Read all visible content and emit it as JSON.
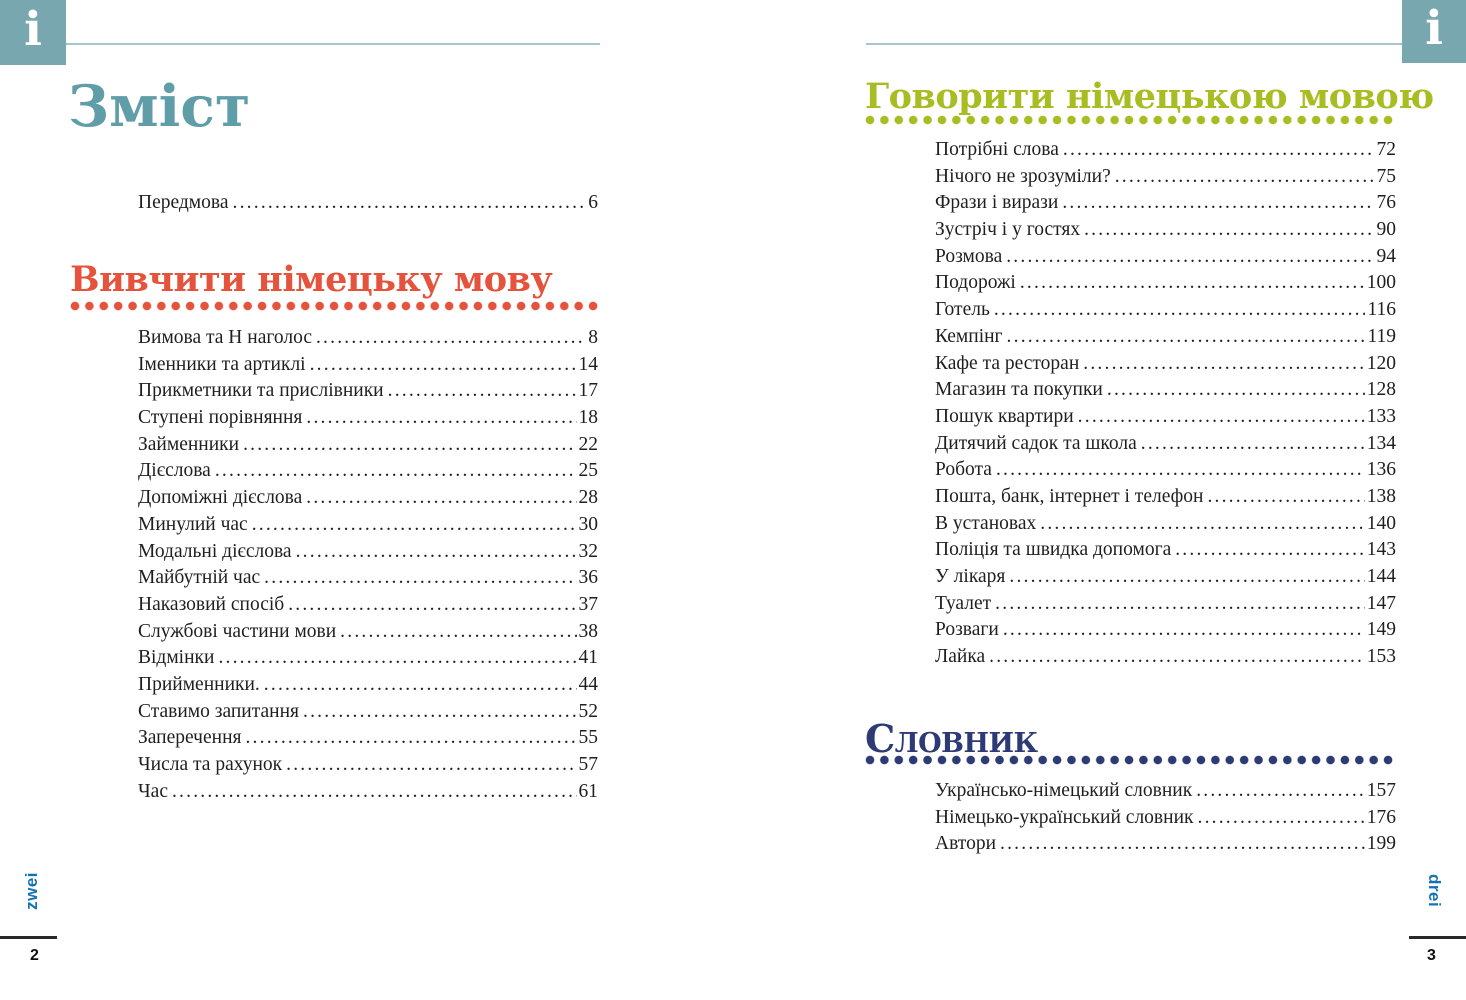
{
  "header": {
    "left_tab_glyph": "i",
    "right_tab_glyph": "i"
  },
  "left_page": {
    "title": "Зміст",
    "front_items": [
      {
        "label": "Передмова",
        "page": "6"
      }
    ],
    "section": {
      "heading": "Вивчити німецьку мову",
      "items": [
        {
          "label": "Вимова та Н наголос",
          "page": "8"
        },
        {
          "label": "Іменники та артиклі",
          "page": "14"
        },
        {
          "label": "Прикметники та прислівники",
          "page": "17"
        },
        {
          "label": "Ступені порівняння",
          "page": "18"
        },
        {
          "label": "Займенники",
          "page": "22"
        },
        {
          "label": "Дієслова",
          "page": "25"
        },
        {
          "label": "Допоміжні дієслова",
          "page": "28"
        },
        {
          "label": "Минулий час",
          "page": "30"
        },
        {
          "label": "Модальні дієслова",
          "page": "32"
        },
        {
          "label": "Майбутній час",
          "page": "36"
        },
        {
          "label": "Наказовий спосіб",
          "page": "37"
        },
        {
          "label": "Службові частини мови",
          "page": "38"
        },
        {
          "label": "Відмінки",
          "page": "41"
        },
        {
          "label": "Прийменники.",
          "page": "44"
        },
        {
          "label": "Ставимо запитання",
          "page": "52"
        },
        {
          "label": "Заперечення",
          "page": "55"
        },
        {
          "label": "Числа та рахунок",
          "page": "57"
        },
        {
          "label": "Час",
          "page": "61"
        }
      ]
    },
    "footer": {
      "word": "zwei",
      "page_number": "2"
    }
  },
  "right_page": {
    "section_speak": {
      "heading": "Говорити німецькою мовою",
      "items": [
        {
          "label": "Потрібні слова",
          "page": "72"
        },
        {
          "label": "Нічого не зрозуміли?",
          "page": "75"
        },
        {
          "label": "Фрази і вирази",
          "page": "76"
        },
        {
          "label": "Зустріч і у гостях",
          "page": "90"
        },
        {
          "label": "Розмова",
          "page": "94"
        },
        {
          "label": "Подорожі",
          "page": "100"
        },
        {
          "label": "Готель",
          "page": "116"
        },
        {
          "label": "Кемпінг",
          "page": "119"
        },
        {
          "label": "Кафе та ресторан",
          "page": "120"
        },
        {
          "label": "Магазин та покупки",
          "page": "128"
        },
        {
          "label": "Пошук квартири",
          "page": "133"
        },
        {
          "label": "Дитячий садок та школа",
          "page": "134"
        },
        {
          "label": "Робота",
          "page": "136"
        },
        {
          "label": "Пошта, банк, інтернет і телефон",
          "page": "138"
        },
        {
          "label": "В установах",
          "page": "140"
        },
        {
          "label": "Поліція та швидка допомога",
          "page": "143"
        },
        {
          "label": "У лікаря",
          "page": "144"
        },
        {
          "label": "Туалет",
          "page": "147"
        },
        {
          "label": "Розваги",
          "page": "149"
        },
        {
          "label": "Лайка",
          "page": "153"
        }
      ]
    },
    "section_dictionary": {
      "heading": "Словник",
      "items": [
        {
          "label": "Українсько-німецький словник",
          "page": "157"
        },
        {
          "label": "Німецько-український словник",
          "page": "176"
        },
        {
          "label": "Автори",
          "page": "199"
        }
      ]
    },
    "footer": {
      "word": "drei",
      "page_number": "3"
    }
  },
  "colors": {
    "teal_tab": "#79a7b0",
    "teal_title": "#5f9da8",
    "header_rule": "#a9c6cc",
    "orange_heading": "#e5533c",
    "green_heading": "#a9bd22",
    "navy_heading": "#2d3a75",
    "footer_word_blue": "#1272b5",
    "body_text": "#1f1f1f"
  }
}
